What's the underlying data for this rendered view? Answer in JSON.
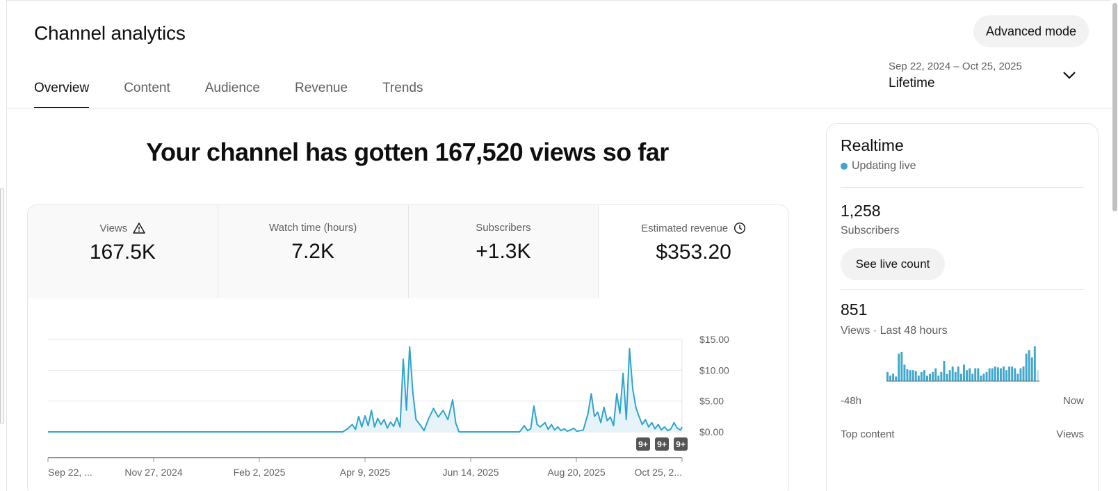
{
  "page": {
    "title": "Channel analytics",
    "advanced_mode": "Advanced mode"
  },
  "tabs": [
    {
      "label": "Overview",
      "active": true
    },
    {
      "label": "Content"
    },
    {
      "label": "Audience"
    },
    {
      "label": "Revenue"
    },
    {
      "label": "Trends"
    }
  ],
  "date": {
    "range": "Sep 22, 2024 – Oct 25, 2025",
    "label": "Lifetime"
  },
  "headline": "Your channel has gotten 167,520 views so far",
  "metrics": [
    {
      "label": "Views",
      "value": "167.5K",
      "icon": "warning-icon"
    },
    {
      "label": "Watch time (hours)",
      "value": "7.2K"
    },
    {
      "label": "Subscribers",
      "value": "+1.3K"
    },
    {
      "label": "Estimated revenue",
      "value": "$353.20",
      "icon": "clock-icon"
    }
  ],
  "chart_data": {
    "type": "area",
    "metric": "Estimated revenue",
    "y_axis_side": "right",
    "ylim": [
      0,
      15
    ],
    "yticks": [
      "$15.00",
      "$10.00",
      "$5.00",
      "$0.00"
    ],
    "ytick_values": [
      15,
      10,
      5,
      0
    ],
    "xticks": [
      "Sep 22, ...",
      "Nov 27, 2024",
      "Feb 2, 2025",
      "Apr 9, 2025",
      "Jun 14, 2025",
      "Aug 20, 2025",
      "Oct 25, 2..."
    ],
    "start_date": "2024-09-22",
    "end_date": "2025-10-25",
    "series": [
      {
        "points": [
          [
            "2024-09-22",
            0
          ],
          [
            "2025-03-26",
            0
          ],
          [
            "2025-03-29",
            0.5
          ],
          [
            "2025-04-01",
            1.2
          ],
          [
            "2025-04-03",
            0.4
          ],
          [
            "2025-04-05",
            2.5
          ],
          [
            "2025-04-07",
            0.8
          ],
          [
            "2025-04-09",
            2.6
          ],
          [
            "2025-04-11",
            1.0
          ],
          [
            "2025-04-13",
            3.5
          ],
          [
            "2025-04-15",
            0.8
          ],
          [
            "2025-04-17",
            2.2
          ],
          [
            "2025-04-19",
            1.2
          ],
          [
            "2025-04-21",
            2.0
          ],
          [
            "2025-04-23",
            0.6
          ],
          [
            "2025-04-25",
            1.6
          ],
          [
            "2025-04-27",
            0.9
          ],
          [
            "2025-04-29",
            2.3
          ],
          [
            "2025-05-01",
            0.8
          ],
          [
            "2025-05-03",
            11.8
          ],
          [
            "2025-05-05",
            3.5
          ],
          [
            "2025-05-07",
            13.8
          ],
          [
            "2025-05-09",
            6.5
          ],
          [
            "2025-05-11",
            2.0
          ],
          [
            "2025-05-14",
            1.0
          ],
          [
            "2025-05-16",
            0.2
          ],
          [
            "2025-05-19",
            2.2
          ],
          [
            "2025-05-22",
            3.8
          ],
          [
            "2025-05-25",
            2.4
          ],
          [
            "2025-05-28",
            3.5
          ],
          [
            "2025-05-31",
            2.0
          ],
          [
            "2025-06-03",
            5.2
          ],
          [
            "2025-06-05",
            1.4
          ],
          [
            "2025-06-07",
            0
          ],
          [
            "2025-07-15",
            0
          ],
          [
            "2025-07-18",
            1.0
          ],
          [
            "2025-07-20",
            0.2
          ],
          [
            "2025-07-22",
            0.5
          ],
          [
            "2025-07-24",
            4.2
          ],
          [
            "2025-07-26",
            1.2
          ],
          [
            "2025-07-28",
            0.8
          ],
          [
            "2025-07-31",
            1.5
          ],
          [
            "2025-08-02",
            0.4
          ],
          [
            "2025-08-04",
            1.2
          ],
          [
            "2025-08-06",
            0.3
          ],
          [
            "2025-08-08",
            0.8
          ],
          [
            "2025-08-10",
            0.2
          ],
          [
            "2025-08-12",
            0.5
          ],
          [
            "2025-08-14",
            0.1
          ],
          [
            "2025-08-16",
            0.3
          ],
          [
            "2025-08-18",
            0.6
          ],
          [
            "2025-08-20",
            0.1
          ],
          [
            "2025-08-22",
            0.2
          ],
          [
            "2025-08-24",
            0.3
          ],
          [
            "2025-08-27",
            3.0
          ],
          [
            "2025-08-29",
            6.2
          ],
          [
            "2025-08-31",
            2.5
          ],
          [
            "2025-09-02",
            3.2
          ],
          [
            "2025-09-04",
            1.5
          ],
          [
            "2025-09-06",
            4.0
          ],
          [
            "2025-09-08",
            1.8
          ],
          [
            "2025-09-10",
            2.4
          ],
          [
            "2025-09-12",
            1.0
          ],
          [
            "2025-09-14",
            6.2
          ],
          [
            "2025-09-16",
            3.0
          ],
          [
            "2025-09-18",
            9.5
          ],
          [
            "2025-09-20",
            2.0
          ],
          [
            "2025-09-22",
            13.5
          ],
          [
            "2025-09-24",
            7.0
          ],
          [
            "2025-09-26",
            4.0
          ],
          [
            "2025-09-28",
            2.5
          ],
          [
            "2025-09-30",
            1.2
          ],
          [
            "2025-10-02",
            2.0
          ],
          [
            "2025-10-04",
            0.8
          ],
          [
            "2025-10-06",
            1.5
          ],
          [
            "2025-10-08",
            0.5
          ],
          [
            "2025-10-10",
            1.2
          ],
          [
            "2025-10-12",
            0.3
          ],
          [
            "2025-10-14",
            0.8
          ],
          [
            "2025-10-16",
            0.2
          ],
          [
            "2025-10-18",
            0.5
          ],
          [
            "2025-10-20",
            1.5
          ],
          [
            "2025-10-22",
            0.6
          ],
          [
            "2025-10-24",
            0.3
          ],
          [
            "2025-10-25",
            0.8
          ]
        ]
      }
    ],
    "markers": [
      "9+",
      "9+",
      "9+"
    ],
    "color": "#30a3cc"
  },
  "realtime": {
    "title": "Realtime",
    "status": "Updating live",
    "subscribers_value": "1,258",
    "subscribers_label": "Subscribers",
    "see_live_count": "See live count",
    "views_value": "851",
    "views_label": "Views · Last 48 hours",
    "axis_start": "-48h",
    "axis_end": "Now",
    "top_content": "Top content",
    "views_col": "Views",
    "hourly_views": [
      10,
      6,
      8,
      5,
      30,
      32,
      18,
      13,
      12,
      12,
      11,
      6,
      10,
      12,
      6,
      8,
      10,
      14,
      6,
      10,
      22,
      8,
      12,
      16,
      10,
      16,
      8,
      18,
      12,
      14,
      8,
      14,
      14,
      6,
      8,
      10,
      14,
      14,
      16,
      15,
      14,
      16,
      12,
      16,
      16,
      14,
      8,
      14,
      16,
      30,
      34,
      26,
      38,
      12
    ],
    "bar_color": "#3ea6cf",
    "current_bar_color": "#bfe3f1"
  }
}
